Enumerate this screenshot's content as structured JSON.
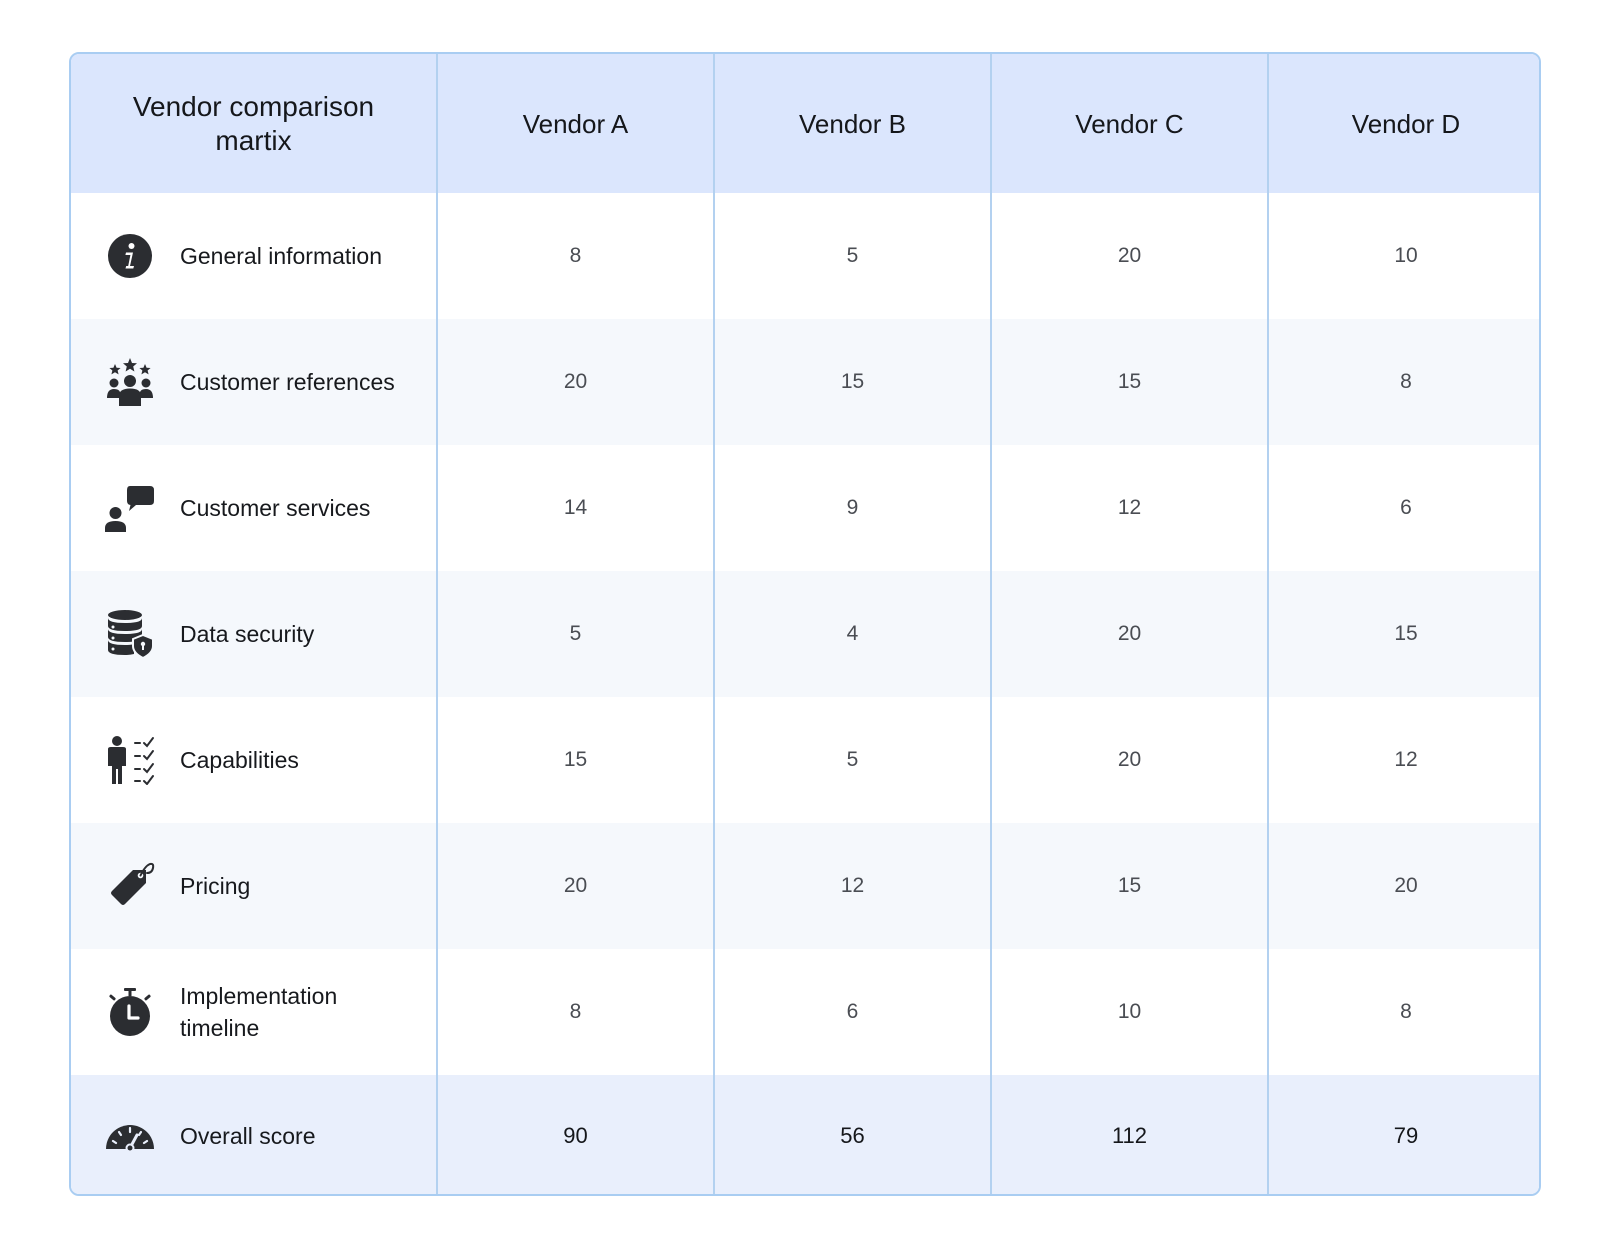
{
  "table": {
    "title": "Vendor comparison martix",
    "vendors": [
      "Vendor A",
      "Vendor B",
      "Vendor C",
      "Vendor D"
    ],
    "rows": [
      {
        "label": "General information",
        "icon": "info-icon",
        "values": [
          "8",
          "5",
          "20",
          "10"
        ]
      },
      {
        "label": "Customer references",
        "icon": "customer-references-icon",
        "values": [
          "20",
          "15",
          "15",
          "8"
        ]
      },
      {
        "label": "Customer services",
        "icon": "customer-service-icon",
        "values": [
          "14",
          "9",
          "12",
          "6"
        ]
      },
      {
        "label": "Data security",
        "icon": "data-security-icon",
        "values": [
          "5",
          "4",
          "20",
          "15"
        ]
      },
      {
        "label": "Capabilities",
        "icon": "capabilities-icon",
        "values": [
          "15",
          "5",
          "20",
          "12"
        ]
      },
      {
        "label": "Pricing",
        "icon": "price-tag-icon",
        "values": [
          "20",
          "12",
          "15",
          "20"
        ]
      },
      {
        "label": "Implementation timeline",
        "icon": "stopwatch-icon",
        "values": [
          "8",
          "6",
          "10",
          "8"
        ]
      }
    ],
    "total": {
      "label": "Overall score",
      "icon": "gauge-icon",
      "values": [
        "90",
        "56",
        "112",
        "79"
      ]
    }
  },
  "colors": {
    "header_bg": "#dbe6fd",
    "border": "#a9cdf2",
    "alt_row_bg": "#f5f8fc",
    "total_row_bg": "#e9effc",
    "icon": "#2b2d31"
  }
}
